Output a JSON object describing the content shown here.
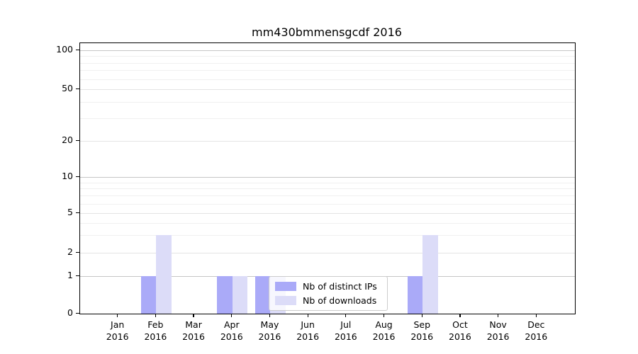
{
  "chart_data": {
    "type": "bar",
    "title": "mm430bmmensgcdf 2016",
    "x_year": "2016",
    "categories": [
      "Jan",
      "Feb",
      "Mar",
      "Apr",
      "May",
      "Jun",
      "Jul",
      "Aug",
      "Sep",
      "Oct",
      "Nov",
      "Dec"
    ],
    "series": [
      {
        "name": "Nb of distinct IPs",
        "color": "#aaaaf8",
        "values": [
          0,
          1,
          0,
          1,
          1,
          0,
          0,
          0,
          1,
          0,
          0,
          0
        ]
      },
      {
        "name": "Nb of downloads",
        "color": "#dcdcf8",
        "values": [
          0,
          3,
          0,
          1,
          1,
          0,
          0,
          0,
          3,
          0,
          0,
          0
        ]
      }
    ],
    "yscale": "symlog",
    "ylim": [
      0,
      130
    ],
    "yticks": [
      0,
      1,
      2,
      5,
      10,
      20,
      50,
      100
    ],
    "minor_yticks": [
      3,
      4,
      6,
      7,
      8,
      9,
      30,
      40,
      60,
      70,
      80,
      90
    ],
    "grid": true,
    "legend_position": "inside-lower-center"
  }
}
